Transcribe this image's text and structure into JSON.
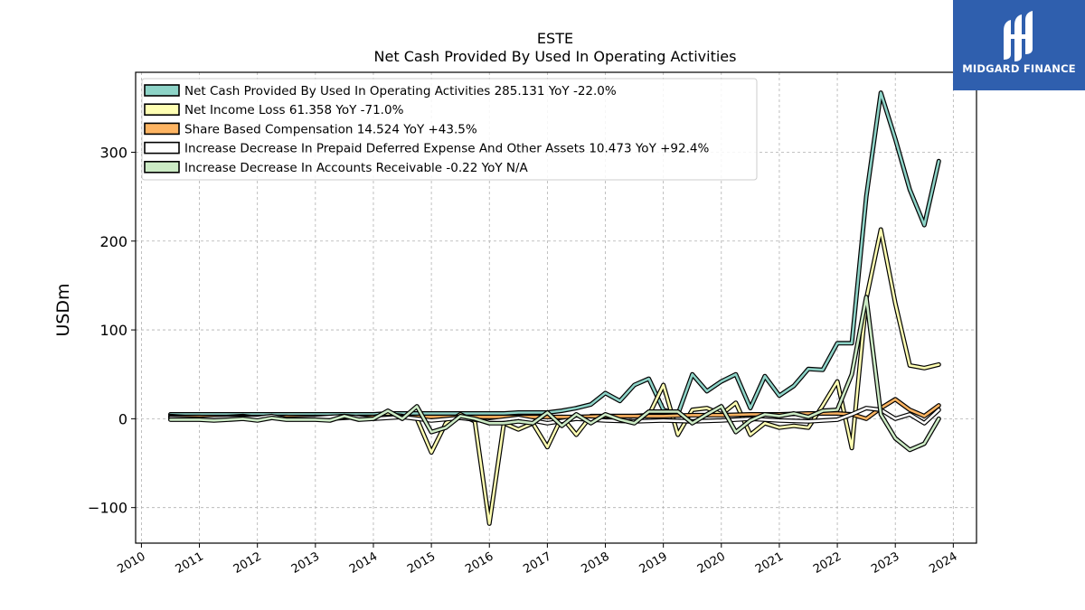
{
  "chart_data": {
    "type": "line",
    "title": "ESTE",
    "subtitle": "Net Cash Provided By Used In Operating Activities",
    "ylabel": "USDm",
    "xlabel": "",
    "xlim": [
      2009.9,
      2024.4
    ],
    "ylim": [
      -140,
      390
    ],
    "x_ticks": [
      2010,
      2011,
      2012,
      2013,
      2014,
      2015,
      2016,
      2017,
      2018,
      2019,
      2020,
      2021,
      2022,
      2023,
      2024
    ],
    "y_ticks": [
      -100,
      0,
      100,
      200,
      300
    ],
    "y_tick_labels": [
      "−100",
      "0",
      "100",
      "200",
      "300"
    ],
    "grid": true,
    "legend_position": "top-left",
    "series": [
      {
        "name": "Net Cash Provided By Used In Operating Activities",
        "legend": "Net Cash Provided By Used In Operating Activities  285.131 YoY -22.0%",
        "color": "#8dd3c7",
        "points": [
          [
            2010.5,
            5
          ],
          [
            2010.75,
            5
          ],
          [
            2011.0,
            5
          ],
          [
            2011.25,
            5
          ],
          [
            2011.5,
            5
          ],
          [
            2011.75,
            5
          ],
          [
            2012.0,
            5
          ],
          [
            2012.25,
            5
          ],
          [
            2012.5,
            5
          ],
          [
            2012.75,
            5
          ],
          [
            2013.0,
            5
          ],
          [
            2013.25,
            5
          ],
          [
            2013.5,
            5
          ],
          [
            2013.75,
            5
          ],
          [
            2014.0,
            5
          ],
          [
            2014.25,
            6
          ],
          [
            2014.5,
            6
          ],
          [
            2014.75,
            6
          ],
          [
            2015.0,
            6
          ],
          [
            2015.25,
            6
          ],
          [
            2015.5,
            6
          ],
          [
            2015.75,
            6
          ],
          [
            2016.0,
            6
          ],
          [
            2016.25,
            6
          ],
          [
            2016.5,
            7
          ],
          [
            2016.75,
            7
          ],
          [
            2017.0,
            7
          ],
          [
            2017.25,
            9
          ],
          [
            2017.5,
            12
          ],
          [
            2017.75,
            16
          ],
          [
            2018.0,
            29
          ],
          [
            2018.25,
            20
          ],
          [
            2018.5,
            38
          ],
          [
            2018.75,
            45
          ],
          [
            2019.0,
            10
          ],
          [
            2019.25,
            5
          ],
          [
            2019.5,
            50
          ],
          [
            2019.75,
            31
          ],
          [
            2020.0,
            42
          ],
          [
            2020.25,
            50
          ],
          [
            2020.5,
            12
          ],
          [
            2020.75,
            48
          ],
          [
            2021.0,
            26
          ],
          [
            2021.25,
            37
          ],
          [
            2021.5,
            56
          ],
          [
            2021.75,
            55
          ],
          [
            2022.0,
            85
          ],
          [
            2022.25,
            85
          ],
          [
            2022.5,
            250
          ],
          [
            2022.75,
            367
          ],
          [
            2023.0,
            315
          ],
          [
            2023.25,
            258
          ],
          [
            2023.5,
            218
          ],
          [
            2023.75,
            290
          ]
        ]
      },
      {
        "name": "Net Income Loss",
        "legend": "Net Income Loss  61.358 YoY -71.0%",
        "color": "#ffffb3",
        "points": [
          [
            2010.5,
            3
          ],
          [
            2010.75,
            2
          ],
          [
            2011.0,
            2
          ],
          [
            2011.25,
            1
          ],
          [
            2011.5,
            2
          ],
          [
            2011.75,
            3
          ],
          [
            2012.0,
            1
          ],
          [
            2012.25,
            2
          ],
          [
            2012.5,
            2
          ],
          [
            2012.75,
            1
          ],
          [
            2013.0,
            2
          ],
          [
            2013.25,
            0
          ],
          [
            2013.5,
            1
          ],
          [
            2013.75,
            2
          ],
          [
            2014.0,
            2
          ],
          [
            2014.25,
            5
          ],
          [
            2014.5,
            3
          ],
          [
            2014.75,
            0
          ],
          [
            2015.0,
            -38
          ],
          [
            2015.25,
            -5
          ],
          [
            2015.5,
            5
          ],
          [
            2015.75,
            -3
          ],
          [
            2016.0,
            -118
          ],
          [
            2016.25,
            -5
          ],
          [
            2016.5,
            -12
          ],
          [
            2016.75,
            -5
          ],
          [
            2017.0,
            -32
          ],
          [
            2017.25,
            2
          ],
          [
            2017.5,
            -18
          ],
          [
            2017.75,
            3
          ],
          [
            2018.0,
            3
          ],
          [
            2018.25,
            3
          ],
          [
            2018.5,
            3
          ],
          [
            2018.75,
            4
          ],
          [
            2019.0,
            38
          ],
          [
            2019.25,
            -18
          ],
          [
            2019.5,
            10
          ],
          [
            2019.75,
            12
          ],
          [
            2020.0,
            5
          ],
          [
            2020.25,
            18
          ],
          [
            2020.5,
            -18
          ],
          [
            2020.75,
            -5
          ],
          [
            2021.0,
            -10
          ],
          [
            2021.25,
            -8
          ],
          [
            2021.5,
            -10
          ],
          [
            2021.75,
            15
          ],
          [
            2022.0,
            42
          ],
          [
            2022.25,
            -33
          ],
          [
            2022.5,
            135
          ],
          [
            2022.75,
            213
          ],
          [
            2023.0,
            130
          ],
          [
            2023.25,
            60
          ],
          [
            2023.5,
            57
          ],
          [
            2023.75,
            61
          ]
        ]
      },
      {
        "name": "Share Based Compensation",
        "legend": "Share Based Compensation  14.524 YoY +43.5%",
        "color": "#fdb462",
        "points": [
          [
            2010.5,
            2
          ],
          [
            2011.0,
            2
          ],
          [
            2011.5,
            2
          ],
          [
            2012.0,
            2
          ],
          [
            2012.5,
            2
          ],
          [
            2013.0,
            2
          ],
          [
            2013.5,
            2
          ],
          [
            2014.0,
            2
          ],
          [
            2014.5,
            2
          ],
          [
            2015.0,
            2
          ],
          [
            2015.5,
            2
          ],
          [
            2016.0,
            2
          ],
          [
            2016.5,
            2
          ],
          [
            2017.0,
            2
          ],
          [
            2017.5,
            2
          ],
          [
            2018.0,
            3
          ],
          [
            2018.5,
            3
          ],
          [
            2019.0,
            3
          ],
          [
            2019.5,
            4
          ],
          [
            2020.0,
            4
          ],
          [
            2020.5,
            5
          ],
          [
            2021.0,
            5
          ],
          [
            2021.5,
            6
          ],
          [
            2022.0,
            6
          ],
          [
            2022.25,
            5
          ],
          [
            2022.5,
            0
          ],
          [
            2022.75,
            12
          ],
          [
            2023.0,
            22
          ],
          [
            2023.25,
            10
          ],
          [
            2023.5,
            3
          ],
          [
            2023.75,
            15
          ]
        ]
      },
      {
        "name": "Increase Decrease In Prepaid Deferred Expense And Other Assets",
        "legend": "Increase Decrease In Prepaid Deferred Expense And Other Assets  10.473 YoY +92.4%",
        "color": "#ffffff",
        "points": [
          [
            2010.5,
            1
          ],
          [
            2011.0,
            0
          ],
          [
            2011.5,
            1
          ],
          [
            2012.0,
            1
          ],
          [
            2012.25,
            3
          ],
          [
            2012.5,
            0
          ],
          [
            2013.0,
            1
          ],
          [
            2013.5,
            3
          ],
          [
            2014.0,
            0
          ],
          [
            2014.5,
            2
          ],
          [
            2015.0,
            -2
          ],
          [
            2015.5,
            1
          ],
          [
            2016.0,
            -3
          ],
          [
            2016.5,
            1
          ],
          [
            2017.0,
            -5
          ],
          [
            2017.5,
            0
          ],
          [
            2018.0,
            -2
          ],
          [
            2018.5,
            -3
          ],
          [
            2019.0,
            -2
          ],
          [
            2019.5,
            -3
          ],
          [
            2020.0,
            -2
          ],
          [
            2020.5,
            0
          ],
          [
            2021.0,
            -2
          ],
          [
            2021.5,
            -3
          ],
          [
            2022.0,
            -1
          ],
          [
            2022.25,
            5
          ],
          [
            2022.5,
            12
          ],
          [
            2022.75,
            10
          ],
          [
            2023.0,
            0
          ],
          [
            2023.25,
            5
          ],
          [
            2023.5,
            -5
          ],
          [
            2023.75,
            10
          ]
        ]
      },
      {
        "name": "Increase Decrease In Accounts Receivable",
        "legend": "Increase Decrease In Accounts Receivable  -0.22 YoY N/A",
        "color": "#ccebc5",
        "points": [
          [
            2010.5,
            -1
          ],
          [
            2010.75,
            -1
          ],
          [
            2011.0,
            -1
          ],
          [
            2011.25,
            -2
          ],
          [
            2011.5,
            -1
          ],
          [
            2011.75,
            0
          ],
          [
            2012.0,
            -2
          ],
          [
            2012.25,
            1
          ],
          [
            2012.5,
            -1
          ],
          [
            2012.75,
            -1
          ],
          [
            2013.0,
            -1
          ],
          [
            2013.25,
            -2
          ],
          [
            2013.5,
            3
          ],
          [
            2013.75,
            -1
          ],
          [
            2014.0,
            0
          ],
          [
            2014.25,
            9
          ],
          [
            2014.5,
            0
          ],
          [
            2014.75,
            14
          ],
          [
            2015.0,
            -15
          ],
          [
            2015.25,
            -10
          ],
          [
            2015.5,
            3
          ],
          [
            2015.75,
            0
          ],
          [
            2016.0,
            -5
          ],
          [
            2016.25,
            -5
          ],
          [
            2016.5,
            -3
          ],
          [
            2016.75,
            -5
          ],
          [
            2017.0,
            7
          ],
          [
            2017.25,
            -8
          ],
          [
            2017.5,
            5
          ],
          [
            2017.75,
            -5
          ],
          [
            2018.0,
            5
          ],
          [
            2018.25,
            -1
          ],
          [
            2018.5,
            -5
          ],
          [
            2018.75,
            8
          ],
          [
            2019.0,
            8
          ],
          [
            2019.25,
            8
          ],
          [
            2019.5,
            -5
          ],
          [
            2019.75,
            5
          ],
          [
            2020.0,
            14
          ],
          [
            2020.25,
            -15
          ],
          [
            2020.5,
            -2
          ],
          [
            2020.75,
            5
          ],
          [
            2021.0,
            3
          ],
          [
            2021.25,
            6
          ],
          [
            2021.5,
            2
          ],
          [
            2021.75,
            9
          ],
          [
            2022.0,
            10
          ],
          [
            2022.25,
            50
          ],
          [
            2022.5,
            137
          ],
          [
            2022.75,
            5
          ],
          [
            2023.0,
            -22
          ],
          [
            2023.25,
            -35
          ],
          [
            2023.5,
            -28
          ],
          [
            2023.75,
            0
          ]
        ]
      }
    ]
  },
  "logo": {
    "brand": "MIDGARD FINANCE"
  }
}
